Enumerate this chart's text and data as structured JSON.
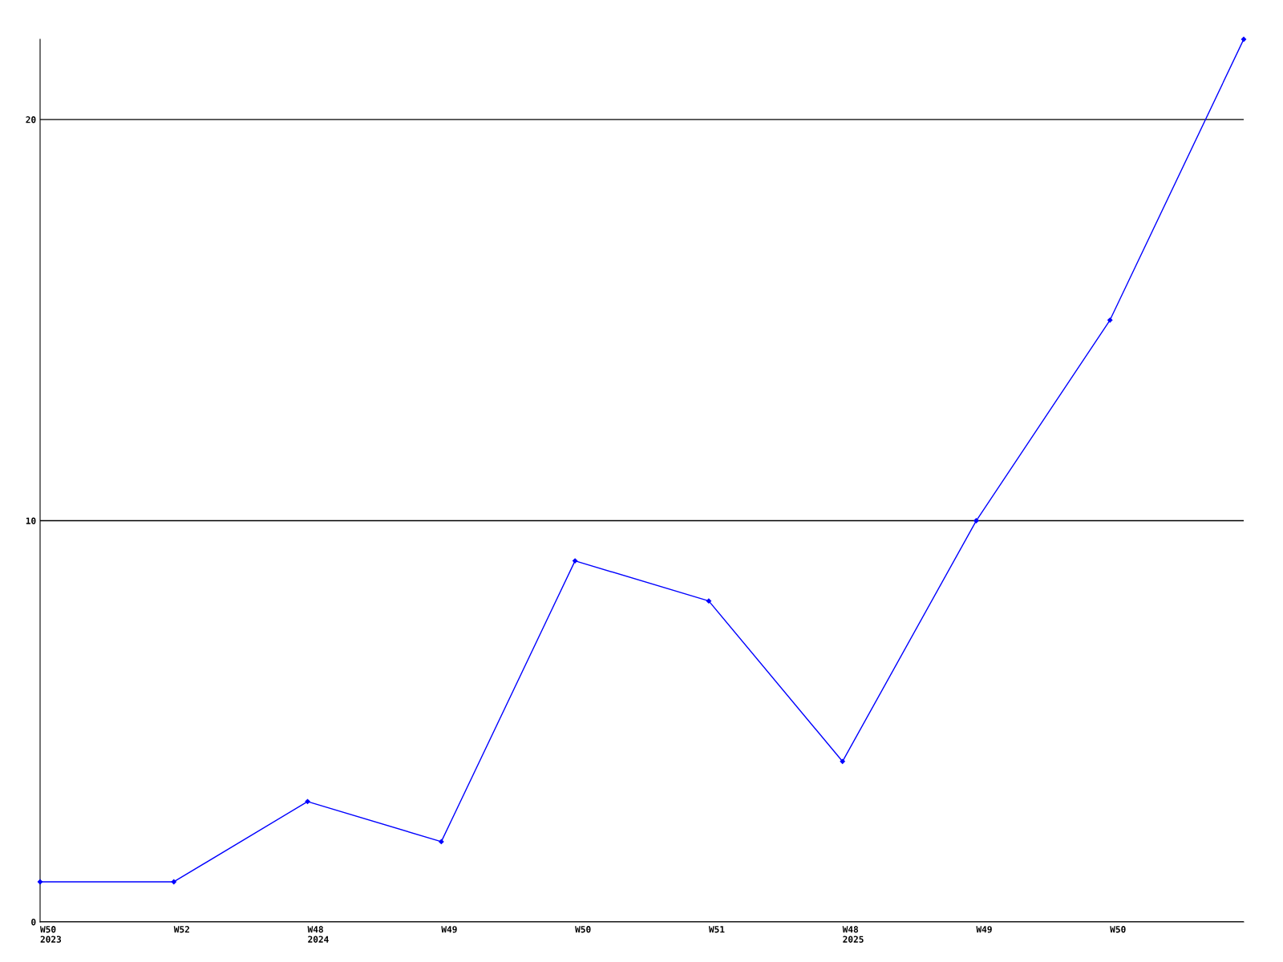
{
  "chart_data": {
    "type": "line",
    "categories": [
      "W50\n2023",
      "W52",
      "W48\n2024",
      "W49",
      "W50",
      "W51",
      "W48\n2025",
      "W49",
      "W50",
      null
    ],
    "series": [
      {
        "color": "#0000ff",
        "values": [
          1,
          1,
          3,
          2,
          9,
          8,
          4,
          10,
          15,
          22
        ]
      }
    ],
    "ylim": [
      0,
      22
    ],
    "yticks": [
      0,
      10,
      20
    ],
    "grid": "y",
    "marker": "diamond",
    "line_style": "solid",
    "legend": false
  }
}
